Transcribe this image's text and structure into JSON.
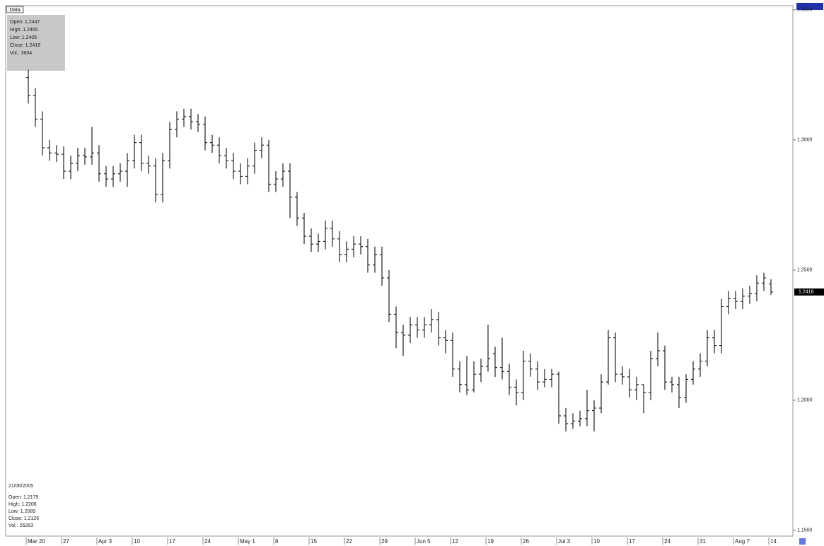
{
  "ui": {
    "data_button": "Data",
    "info_box": [
      "Open: 1.2447",
      "High: 1.2465",
      "Low: 1.2405",
      "Close: 1.2416",
      "Vol.: 3604"
    ],
    "crosshair_box": {
      "date": "21/06/2005",
      "lines": [
        "Open: 1.2179",
        "High: 1.2206",
        "Low: 1.2089",
        "Close: 1.2126",
        "Vol.: 26263"
      ]
    }
  },
  "chart_data": {
    "type": "ohlc",
    "color": "#222222",
    "last_value_label": "1.2416",
    "ylim": [
      1.1478,
      1.3516
    ],
    "yticks": [
      {
        "value": 1.15,
        "label": "1.1500"
      },
      {
        "value": 1.2,
        "label": "1.2000"
      },
      {
        "value": 1.25,
        "label": "1.2500"
      },
      {
        "value": 1.3,
        "label": "1.3000"
      },
      {
        "value": 1.35,
        "label": "1.3500"
      }
    ],
    "grid": false,
    "categories": [
      "Mar 20",
      null,
      null,
      null,
      null,
      "27",
      null,
      null,
      null,
      null,
      "Apr 3",
      null,
      null,
      null,
      null,
      "10",
      null,
      null,
      null,
      null,
      "17",
      null,
      null,
      null,
      null,
      "24",
      null,
      null,
      null,
      null,
      "May 1",
      null,
      null,
      null,
      null,
      "8",
      null,
      null,
      null,
      null,
      "15",
      null,
      null,
      null,
      null,
      "22",
      null,
      null,
      null,
      null,
      "29",
      null,
      null,
      null,
      null,
      "Jun 5",
      null,
      null,
      null,
      null,
      "12",
      null,
      null,
      null,
      null,
      "19",
      null,
      null,
      null,
      null,
      "26",
      null,
      null,
      null,
      null,
      "Jul 3",
      null,
      null,
      null,
      null,
      "10",
      null,
      null,
      null,
      null,
      "17",
      null,
      null,
      null,
      null,
      "24",
      null,
      null,
      null,
      null,
      "31",
      null,
      null,
      null,
      null,
      "Aug 7",
      null,
      null,
      null,
      null,
      "14"
    ],
    "open": [
      1.324,
      1.317,
      1.308,
      1.297,
      1.295,
      1.2945,
      1.288,
      1.291,
      1.294,
      1.2935,
      1.295,
      1.287,
      1.285,
      1.287,
      1.288,
      1.292,
      1.299,
      1.291,
      1.29,
      1.279,
      1.292,
      1.304,
      1.308,
      1.309,
      1.307,
      1.306,
      1.299,
      1.298,
      1.294,
      1.292,
      1.288,
      1.286,
      1.29,
      1.296,
      1.298,
      1.283,
      1.285,
      1.288,
      1.278,
      1.27,
      1.263,
      1.26,
      1.261,
      1.266,
      1.262,
      1.256,
      1.258,
      1.26,
      1.259,
      1.252,
      1.256,
      1.247,
      1.233,
      1.226,
      1.225,
      1.229,
      1.227,
      1.229,
      1.231,
      1.224,
      1.223,
      1.212,
      1.206,
      1.204,
      1.21,
      1.213,
      1.2179,
      1.2126,
      1.211,
      1.205,
      1.203,
      1.215,
      1.212,
      1.207,
      1.208,
      1.21,
      1.194,
      1.191,
      1.192,
      1.193,
      1.196,
      1.197,
      1.207,
      1.224,
      1.21,
      1.209,
      1.204,
      1.206,
      1.203,
      1.216,
      1.219,
      1.207,
      1.206,
      1.201,
      1.208,
      1.212,
      1.215,
      1.224,
      1.221,
      1.236,
      1.239,
      1.238,
      1.24,
      1.241,
      1.245,
      1.2447
    ],
    "high": [
      1.327,
      1.32,
      1.311,
      1.3,
      1.298,
      1.2975,
      1.294,
      1.297,
      1.297,
      1.305,
      1.298,
      1.29,
      1.29,
      1.291,
      1.295,
      1.302,
      1.302,
      1.294,
      1.293,
      1.295,
      1.307,
      1.311,
      1.312,
      1.312,
      1.31,
      1.309,
      1.302,
      1.301,
      1.297,
      1.295,
      1.291,
      1.293,
      1.299,
      1.301,
      1.3,
      1.288,
      1.291,
      1.291,
      1.28,
      1.272,
      1.266,
      1.264,
      1.269,
      1.269,
      1.265,
      1.261,
      1.263,
      1.263,
      1.262,
      1.259,
      1.259,
      1.25,
      1.236,
      1.229,
      1.232,
      1.232,
      1.232,
      1.235,
      1.234,
      1.227,
      1.226,
      1.215,
      1.217,
      1.215,
      1.216,
      1.229,
      1.2206,
      1.224,
      1.214,
      1.208,
      1.219,
      1.218,
      1.215,
      1.212,
      1.212,
      1.211,
      1.197,
      1.195,
      1.196,
      1.204,
      1.2,
      1.21,
      1.227,
      1.226,
      1.213,
      1.212,
      1.209,
      1.206,
      1.219,
      1.226,
      1.221,
      1.209,
      1.209,
      1.21,
      1.215,
      1.218,
      1.227,
      1.227,
      1.239,
      1.242,
      1.242,
      1.243,
      1.244,
      1.248,
      1.249,
      1.2465
    ],
    "low": [
      1.314,
      1.305,
      1.294,
      1.292,
      1.2915,
      1.285,
      1.285,
      1.288,
      1.2905,
      1.2905,
      1.284,
      1.282,
      1.282,
      1.284,
      1.282,
      1.289,
      1.288,
      1.287,
      1.276,
      1.276,
      1.289,
      1.301,
      1.305,
      1.304,
      1.303,
      1.296,
      1.295,
      1.291,
      1.289,
      1.285,
      1.283,
      1.283,
      1.287,
      1.293,
      1.28,
      1.28,
      1.282,
      1.27,
      1.267,
      1.26,
      1.257,
      1.257,
      1.258,
      1.259,
      1.253,
      1.253,
      1.255,
      1.256,
      1.249,
      1.249,
      1.244,
      1.23,
      1.22,
      1.217,
      1.222,
      1.224,
      1.224,
      1.226,
      1.221,
      1.218,
      1.209,
      1.203,
      1.202,
      1.203,
      1.207,
      1.211,
      1.2089,
      1.208,
      1.202,
      1.198,
      1.2,
      1.209,
      1.204,
      1.205,
      1.205,
      1.191,
      1.188,
      1.189,
      1.19,
      1.19,
      1.188,
      1.195,
      1.206,
      1.207,
      1.206,
      1.201,
      1.2,
      1.195,
      1.2,
      1.213,
      1.204,
      1.203,
      1.197,
      1.199,
      1.206,
      1.209,
      1.213,
      1.218,
      1.218,
      1.233,
      1.235,
      1.235,
      1.237,
      1.238,
      1.242,
      1.2405
    ],
    "close": [
      1.317,
      1.308,
      1.297,
      1.295,
      1.2945,
      1.288,
      1.291,
      1.294,
      1.2935,
      1.295,
      1.287,
      1.285,
      1.287,
      1.288,
      1.292,
      1.299,
      1.291,
      1.29,
      1.279,
      1.292,
      1.304,
      1.308,
      1.309,
      1.307,
      1.306,
      1.299,
      1.298,
      1.294,
      1.292,
      1.288,
      1.286,
      1.29,
      1.296,
      1.298,
      1.283,
      1.285,
      1.288,
      1.278,
      1.27,
      1.263,
      1.26,
      1.261,
      1.266,
      1.262,
      1.256,
      1.258,
      1.26,
      1.259,
      1.252,
      1.256,
      1.247,
      1.233,
      1.226,
      1.225,
      1.229,
      1.227,
      1.229,
      1.231,
      1.224,
      1.223,
      1.212,
      1.206,
      1.204,
      1.21,
      1.213,
      1.216,
      1.2126,
      1.211,
      1.205,
      1.203,
      1.215,
      1.212,
      1.207,
      1.208,
      1.21,
      1.194,
      1.191,
      1.192,
      1.193,
      1.196,
      1.197,
      1.207,
      1.224,
      1.21,
      1.209,
      1.204,
      1.206,
      1.203,
      1.216,
      1.219,
      1.207,
      1.206,
      1.201,
      1.208,
      1.212,
      1.215,
      1.224,
      1.221,
      1.236,
      1.239,
      1.238,
      1.24,
      1.241,
      1.245,
      1.247,
      1.2416
    ]
  }
}
